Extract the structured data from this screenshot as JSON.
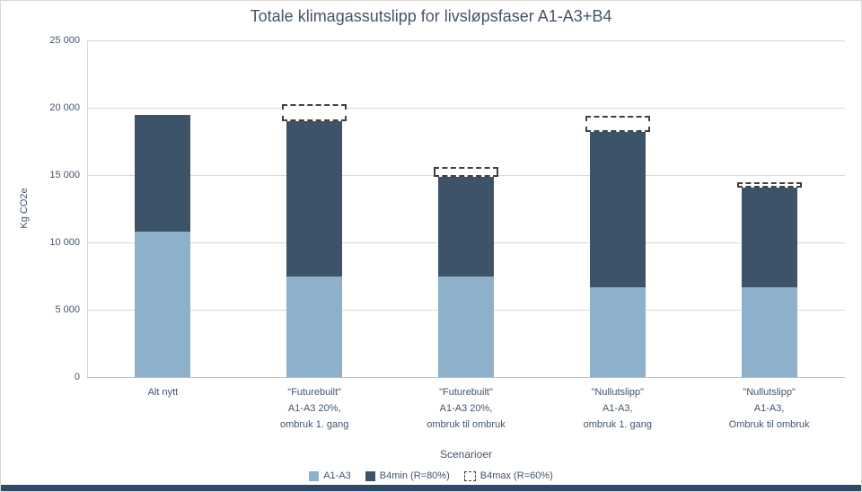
{
  "window": {
    "bottom_strip_color": "#2e4a68",
    "background_color": "#ffffff"
  },
  "chart_data": {
    "type": "bar",
    "stacked": true,
    "title": "Totale klimagassutslipp for livsløpsfaser A1-A3+B4",
    "xlabel": "Scenarioer",
    "ylabel": "Kg CO2e",
    "ylim": [
      0,
      25000
    ],
    "yticks": [
      0,
      5000,
      10000,
      15000,
      20000,
      25000
    ],
    "ytick_labels": [
      "0",
      "5 000",
      "10 000",
      "15 000",
      "20 000",
      "25 000"
    ],
    "grid": true,
    "legend_position": "bottom",
    "categories": [
      [
        "Alt nytt"
      ],
      [
        "\"Futurebuilt\"",
        "A1-A3 20%,",
        "ombruk 1. gang"
      ],
      [
        "\"Futurebuilt\"",
        "A1-A3 20%,",
        "ombruk til ombruk"
      ],
      [
        "\"Nullutslipp\"",
        "A1-A3,",
        "ombruk 1. gang"
      ],
      [
        "\"Nullutslipp\"",
        "A1-A3,",
        "Ombruk til ombruk"
      ]
    ],
    "series": [
      {
        "name": "A1-A3",
        "role": "stack-bottom",
        "color": "#8eb1cb",
        "values": [
          10800,
          7500,
          7500,
          6700,
          6700
        ]
      },
      {
        "name": "B4min (R=80%)",
        "role": "stack-top",
        "color": "#3d5368",
        "values": [
          8700,
          11500,
          7400,
          11500,
          7400
        ]
      },
      {
        "name": "B4max (R=60%)",
        "role": "dashed-extra-above-stack",
        "color": "#404040",
        "values": [
          0,
          1300,
          700,
          1200,
          400
        ]
      }
    ],
    "stack_totals_b4min": [
      19500,
      19000,
      14900,
      18200,
      14100
    ],
    "stack_totals_b4max": [
      19500,
      20300,
      15600,
      19400,
      14500
    ],
    "colors": {
      "text": "#44546A",
      "gridline": "#d9d9d9",
      "axis": "#bfbfbf"
    }
  }
}
